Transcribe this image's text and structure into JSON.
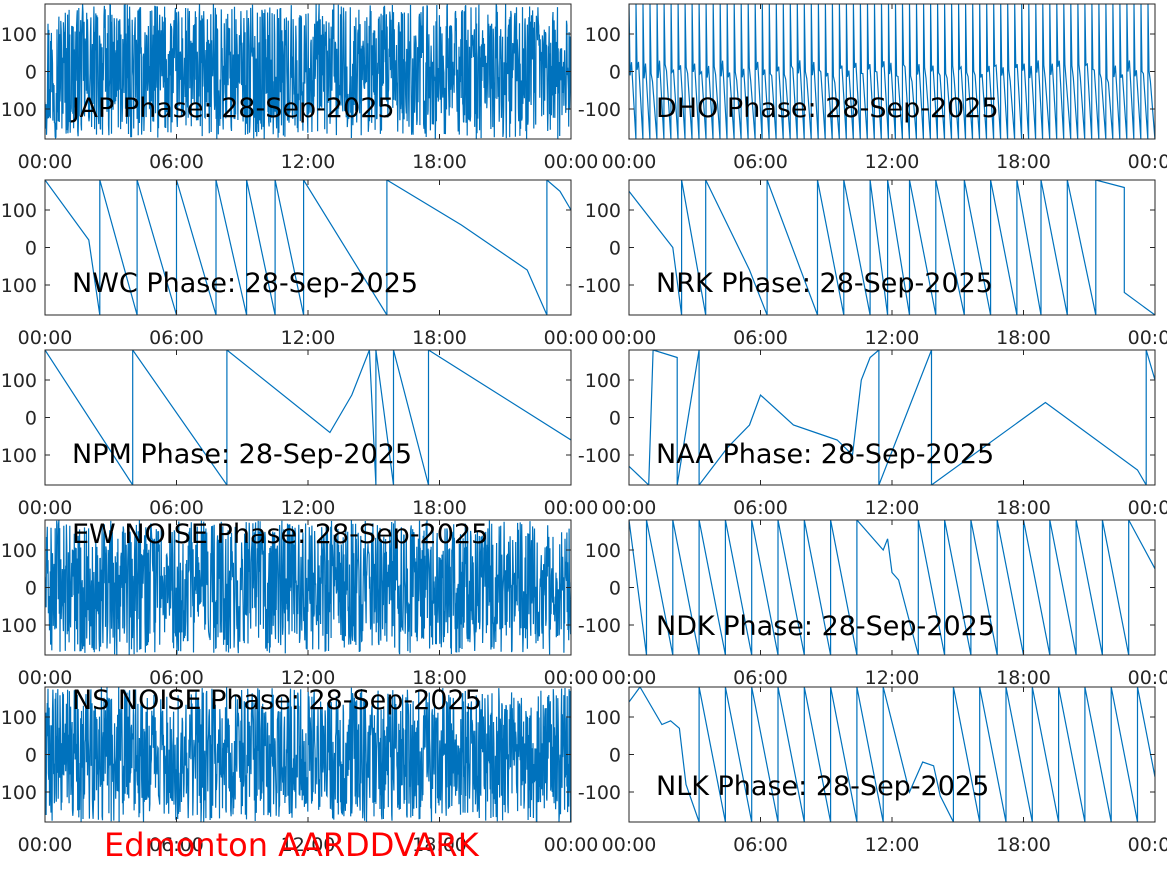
{
  "figure": {
    "station_label": "Edmonton AARDDVARK",
    "station_color": "#ff0000"
  },
  "chart_data": [
    {
      "type": "line",
      "title": "JAP Phase: 28-Sep-2025",
      "x_ticks": [
        "00:00",
        "06:00",
        "12:00",
        "18:00",
        "00:00"
      ],
      "y_ticks": [
        "100",
        "0",
        "-100"
      ],
      "xlim": [
        0,
        24
      ],
      "ylim": [
        -180,
        180
      ],
      "color": "#0072bd",
      "pattern": "noise",
      "x": [],
      "y": []
    },
    {
      "type": "line",
      "title": "DHO Phase: 28-Sep-2025",
      "x_ticks": [
        "00:00",
        "06:00",
        "12:00",
        "18:00",
        "00:00"
      ],
      "y_ticks": [
        "100",
        "0",
        "-100"
      ],
      "xlim": [
        0,
        24
      ],
      "ylim": [
        -180,
        180
      ],
      "color": "#0072bd",
      "pattern": "dense-cycles",
      "x": [],
      "y": []
    },
    {
      "type": "line",
      "title": "NWC Phase: 28-Sep-2025",
      "x_ticks": [
        "00:00",
        "06:00",
        "12:00",
        "18:00",
        "00:00"
      ],
      "y_ticks": [
        "100",
        "0",
        "-100"
      ],
      "xlim": [
        0,
        24
      ],
      "ylim": [
        -180,
        180
      ],
      "color": "#0072bd",
      "x": [
        0,
        2,
        2.5,
        2.5,
        4.2,
        4.2,
        6.0,
        6.0,
        7.8,
        7.8,
        9.2,
        9.2,
        10.5,
        10.5,
        11.8,
        11.8,
        15.6,
        15.6,
        19,
        22,
        22.9,
        22.9,
        23.5,
        24
      ],
      "y": [
        180,
        20,
        -180,
        180,
        -180,
        180,
        -180,
        180,
        -180,
        180,
        -180,
        180,
        -180,
        180,
        -180,
        180,
        -180,
        180,
        60,
        -60,
        -180,
        180,
        150,
        100
      ]
    },
    {
      "type": "line",
      "title": "NRK Phase: 28-Sep-2025",
      "x_ticks": [
        "00:00",
        "06:00",
        "12:00",
        "18:00",
        "00:00"
      ],
      "y_ticks": [
        "100",
        "0",
        "-100"
      ],
      "xlim": [
        0,
        24
      ],
      "ylim": [
        -180,
        180
      ],
      "color": "#0072bd",
      "x": [
        0,
        2,
        2.4,
        2.4,
        3.5,
        3.5,
        5.5,
        6.3,
        6.3,
        8.6,
        8.6,
        9.8,
        9.8,
        11,
        11,
        11.8,
        11.8,
        12.8,
        12.8,
        14.0,
        14.0,
        15.3,
        15.3,
        16.5,
        16.5,
        17.7,
        17.7,
        18.8,
        18.8,
        20.0,
        20.0,
        21.3,
        21.3,
        22.6,
        22.6,
        24
      ],
      "y": [
        150,
        0,
        -180,
        180,
        -180,
        180,
        -60,
        -180,
        180,
        -180,
        180,
        -180,
        180,
        -180,
        180,
        -180,
        180,
        -180,
        180,
        -180,
        180,
        -180,
        180,
        -180,
        180,
        -180,
        180,
        -180,
        180,
        -180,
        180,
        -180,
        180,
        160,
        -120,
        -180
      ]
    },
    {
      "type": "line",
      "title": "NPM Phase: 28-Sep-2025",
      "x_ticks": [
        "00:00",
        "06:00",
        "12:00",
        "18:00",
        "00:00"
      ],
      "y_ticks": [
        "100",
        "0",
        "-100"
      ],
      "xlim": [
        0,
        24
      ],
      "ylim": [
        -180,
        180
      ],
      "color": "#0072bd",
      "x": [
        0,
        4,
        4,
        8.3,
        8.3,
        13,
        14.0,
        14.8,
        15.1,
        15.1,
        15.9,
        15.9,
        17.5,
        17.5,
        24
      ],
      "y": [
        180,
        -180,
        180,
        -180,
        180,
        -40,
        60,
        180,
        -180,
        180,
        -180,
        180,
        -180,
        180,
        -60
      ]
    },
    {
      "type": "line",
      "title": "NAA Phase: 28-Sep-2025",
      "x_ticks": [
        "00:00",
        "06:00",
        "12:00",
        "18:00",
        "00:00"
      ],
      "y_ticks": [
        "100",
        "0",
        "-100"
      ],
      "xlim": [
        0,
        24
      ],
      "ylim": [
        -180,
        180
      ],
      "color": "#0072bd",
      "x": [
        0,
        0.9,
        1.1,
        2.2,
        2.2,
        3.2,
        3.2,
        4.5,
        5.5,
        6.0,
        7.5,
        8.5,
        9.5,
        10.2,
        10.6,
        11.0,
        11.4,
        11.4,
        13.8,
        13.8,
        19,
        23.2,
        23.6,
        23.6,
        24
      ],
      "y": [
        -130,
        -180,
        180,
        160,
        -180,
        180,
        -180,
        -80,
        -20,
        60,
        -20,
        -40,
        -60,
        -100,
        100,
        160,
        180,
        -180,
        180,
        -180,
        40,
        -140,
        -180,
        180,
        100
      ]
    },
    {
      "type": "line",
      "title": "EW NOISE Phase: 28-Sep-2025",
      "x_ticks": [
        "00:00",
        "06:00",
        "12:00",
        "18:00",
        "00:00"
      ],
      "y_ticks": [
        "100",
        "0",
        "-100"
      ],
      "xlim": [
        0,
        24
      ],
      "ylim": [
        -180,
        180
      ],
      "color": "#0072bd",
      "pattern": "noise",
      "x": [],
      "y": []
    },
    {
      "type": "line",
      "title": "NDK Phase: 28-Sep-2025",
      "x_ticks": [
        "00:00",
        "06:00",
        "12:00",
        "18:00",
        "00:00"
      ],
      "y_ticks": [
        "100",
        "0",
        "-100"
      ],
      "xlim": [
        0,
        24
      ],
      "ylim": [
        -180,
        180
      ],
      "color": "#0072bd",
      "x": [
        0,
        0.8,
        0.8,
        2.0,
        2.0,
        3.2,
        3.2,
        4.4,
        4.4,
        5.6,
        5.6,
        6.8,
        6.8,
        8.0,
        8.0,
        9.2,
        9.2,
        10.4,
        10.4,
        11.6,
        11.8,
        12.0,
        12.3,
        13.2,
        13.2,
        14.4,
        14.4,
        15.6,
        15.6,
        16.8,
        16.8,
        18.0,
        18.0,
        19.2,
        19.2,
        20.4,
        20.4,
        21.6,
        21.6,
        22.8,
        22.8,
        24
      ],
      "y": [
        180,
        -180,
        180,
        -180,
        180,
        -180,
        180,
        -180,
        180,
        -180,
        180,
        -180,
        180,
        -180,
        180,
        -180,
        180,
        -180,
        180,
        100,
        130,
        40,
        20,
        -180,
        180,
        -180,
        180,
        -180,
        180,
        -180,
        180,
        -180,
        180,
        -180,
        180,
        -180,
        180,
        -180,
        180,
        -180,
        180,
        50
      ]
    },
    {
      "type": "line",
      "title": "NS NOISE Phase: 28-Sep-2025",
      "x_ticks": [
        "00:00",
        "06:00",
        "12:00",
        "18:00",
        "00:00"
      ],
      "y_ticks": [
        "100",
        "0",
        "-100"
      ],
      "xlim": [
        0,
        24
      ],
      "ylim": [
        -180,
        180
      ],
      "color": "#0072bd",
      "pattern": "noise",
      "x": [],
      "y": []
    },
    {
      "type": "line",
      "title": "NLK Phase: 28-Sep-2025",
      "x_ticks": [
        "00:00",
        "06:00",
        "12:00",
        "18:00",
        "00:00"
      ],
      "y_ticks": [
        "100",
        "0",
        "-100"
      ],
      "xlim": [
        0,
        24
      ],
      "ylim": [
        -180,
        180
      ],
      "color": "#0072bd",
      "x": [
        0,
        0.5,
        0.5,
        1.5,
        1.9,
        2.3,
        2.6,
        3.2,
        3.2,
        4.4,
        4.4,
        5.6,
        5.6,
        6.8,
        6.8,
        8.0,
        8.0,
        9.2,
        9.2,
        10.4,
        10.4,
        11.6,
        11.6,
        12.8,
        13.4,
        13.9,
        14.2,
        14.8,
        14.8,
        16.0,
        16.0,
        17.2,
        17.2,
        18.4,
        18.4,
        19.6,
        19.6,
        20.8,
        20.8,
        22.0,
        22.0,
        23.2,
        23.2,
        24
      ],
      "y": [
        140,
        180,
        180,
        80,
        90,
        70,
        -80,
        -180,
        180,
        -180,
        180,
        -180,
        180,
        -180,
        180,
        -180,
        180,
        -180,
        180,
        -180,
        180,
        -180,
        180,
        -100,
        -20,
        -30,
        -110,
        -180,
        180,
        -180,
        180,
        -180,
        180,
        -180,
        180,
        -180,
        180,
        -180,
        180,
        -180,
        180,
        -180,
        180,
        -60
      ]
    }
  ]
}
